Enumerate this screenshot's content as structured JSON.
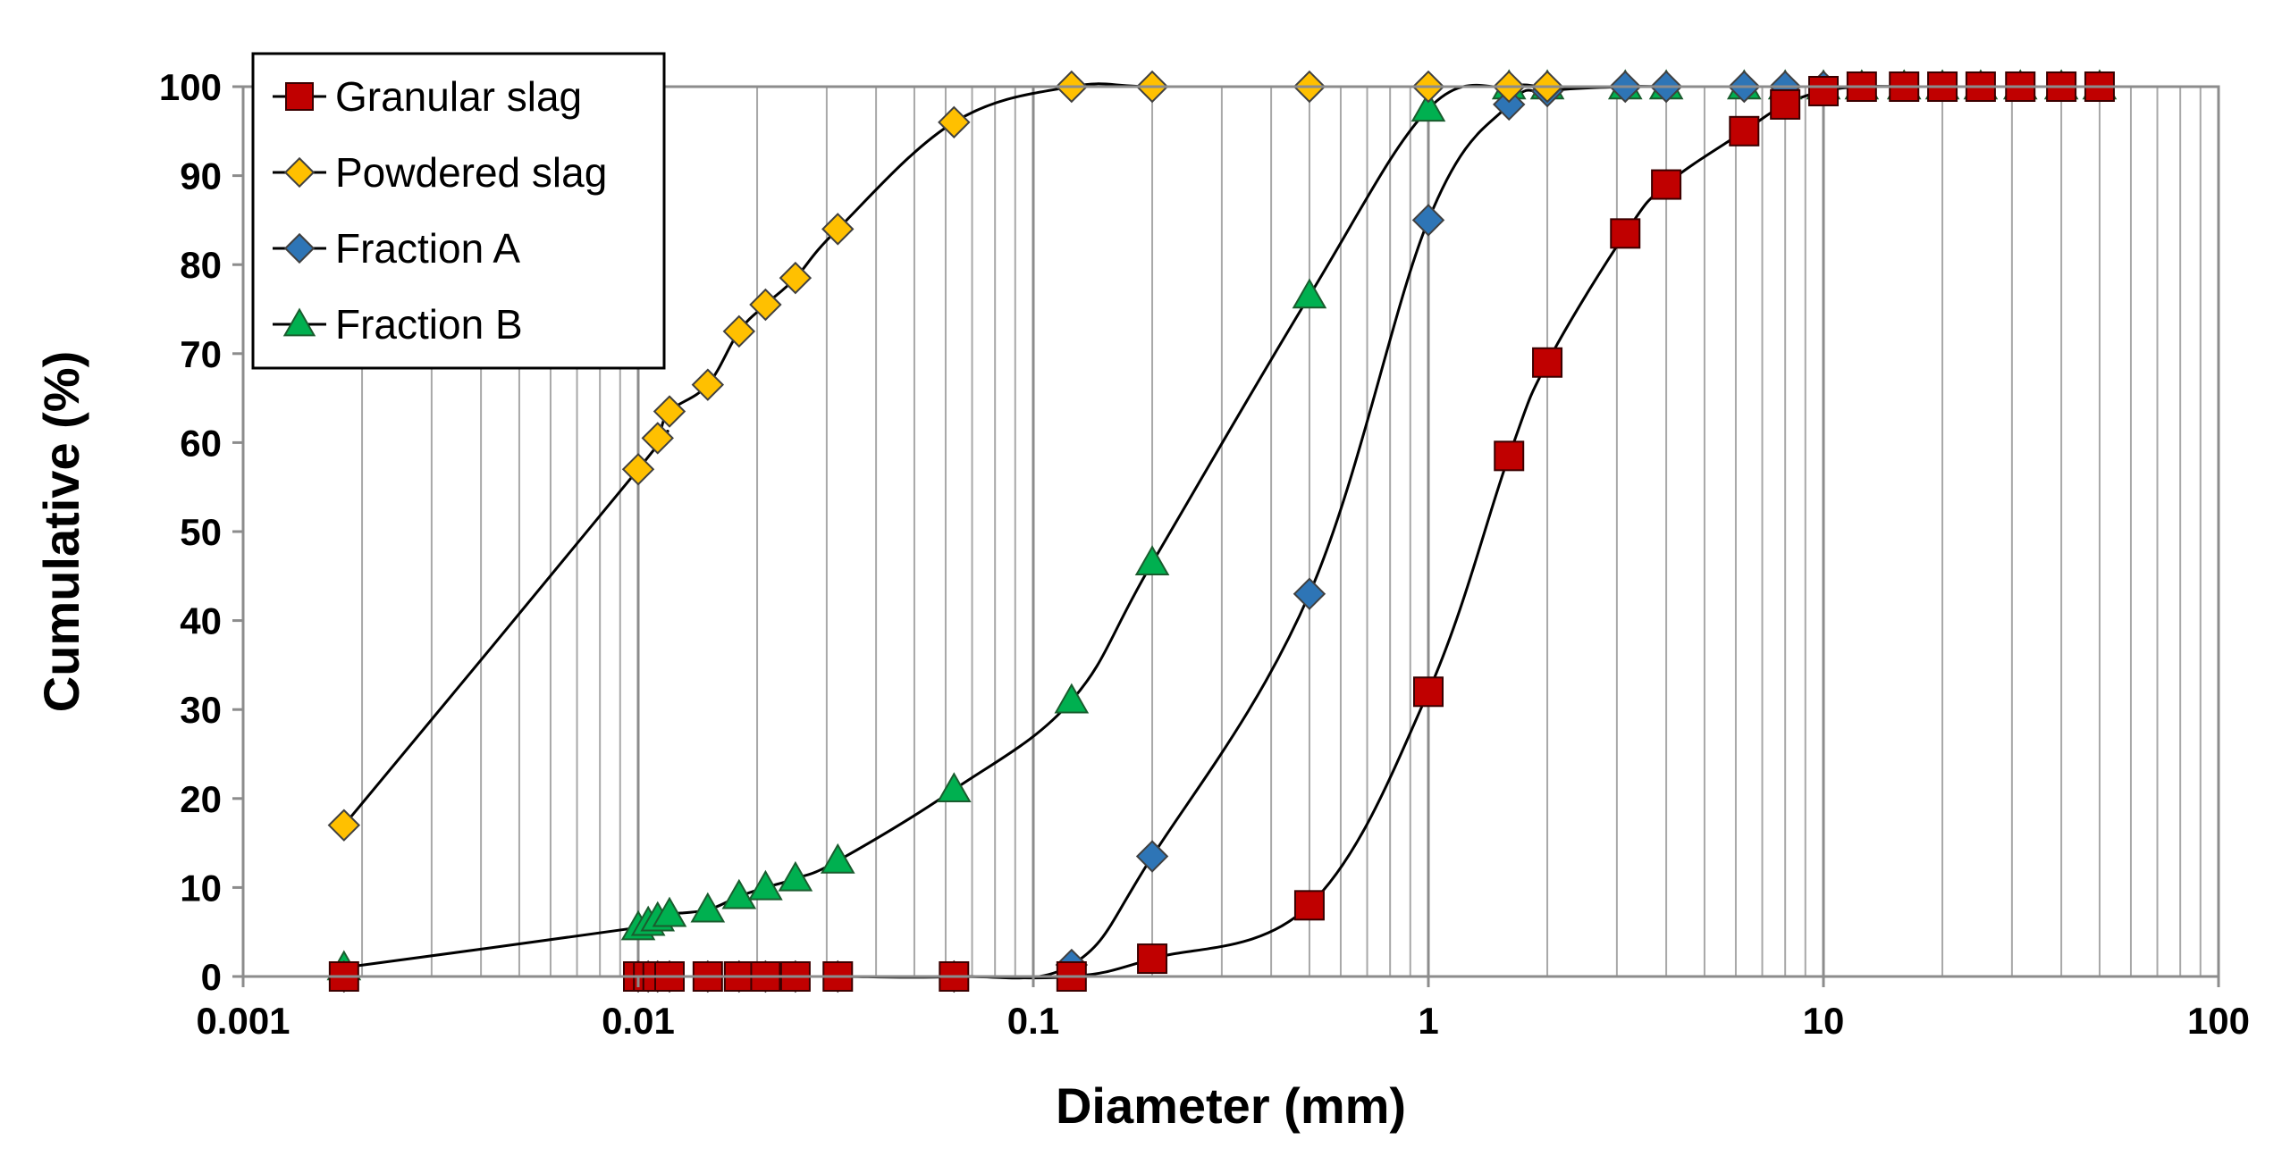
{
  "chart_data": {
    "type": "scatter",
    "title": "",
    "xlabel": "Diameter (mm)",
    "ylabel": "Cumulative (%)",
    "xscale": "log",
    "xlim": [
      0.001,
      100
    ],
    "ylim": [
      0,
      100
    ],
    "x_ticks": [
      {
        "value": 0.001,
        "label": "0.001"
      },
      {
        "value": 0.01,
        "label": "0.01"
      },
      {
        "value": 0.1,
        "label": "0.1"
      },
      {
        "value": 1,
        "label": "1"
      },
      {
        "value": 10,
        "label": "10"
      },
      {
        "value": 100,
        "label": "100"
      }
    ],
    "y_ticks": [
      {
        "value": 0,
        "label": "0"
      },
      {
        "value": 10,
        "label": "10"
      },
      {
        "value": 20,
        "label": "20"
      },
      {
        "value": 30,
        "label": "30"
      },
      {
        "value": 40,
        "label": "40"
      },
      {
        "value": 50,
        "label": "50"
      },
      {
        "value": 60,
        "label": "60"
      },
      {
        "value": 70,
        "label": "70"
      },
      {
        "value": 80,
        "label": "80"
      },
      {
        "value": 90,
        "label": "90"
      },
      {
        "value": 100,
        "label": "100"
      }
    ],
    "grid": {
      "vertical_minor": true,
      "horizontal": false
    },
    "legend_position": "top-left",
    "series": [
      {
        "name": "Granular slag",
        "marker": "square",
        "color": "#c00000",
        "x": [
          0.0018,
          0.01,
          0.0106,
          0.0112,
          0.012,
          0.015,
          0.018,
          0.021,
          0.025,
          0.032,
          0.063,
          0.125,
          0.2,
          0.5,
          1,
          1.6,
          2,
          3.15,
          4,
          6.3,
          8,
          10,
          12.5,
          16,
          20,
          25,
          31.5,
          40,
          50
        ],
        "values": [
          0,
          0,
          0,
          0,
          0,
          0,
          0,
          0,
          0,
          0,
          0,
          0,
          2,
          8,
          32,
          58.5,
          69,
          83.5,
          89,
          95,
          98,
          99.5,
          100,
          100,
          100,
          100,
          100,
          100,
          100
        ]
      },
      {
        "name": "Powdered slag",
        "marker": "diamond",
        "color": "#ffc000",
        "x": [
          0.0018,
          0.01,
          0.0112,
          0.012,
          0.015,
          0.018,
          0.021,
          0.025,
          0.032,
          0.063,
          0.125,
          0.2,
          0.5,
          1,
          1.6,
          2
        ],
        "values": [
          17,
          57,
          60.5,
          63.5,
          66.5,
          72.5,
          75.5,
          78.5,
          84,
          96,
          100,
          100,
          100,
          100,
          100,
          100
        ]
      },
      {
        "name": "Fraction A",
        "marker": "diamond",
        "color": "#2e75b6",
        "x": [
          0.0018,
          0.01,
          0.0106,
          0.0112,
          0.012,
          0.015,
          0.018,
          0.021,
          0.025,
          0.032,
          0.063,
          0.125,
          0.2,
          0.5,
          1,
          1.6,
          2,
          3.15,
          4,
          6.3,
          8,
          10
        ],
        "values": [
          0,
          0,
          0,
          0,
          0,
          0,
          0,
          0,
          0,
          0,
          0,
          1.3,
          13.5,
          43,
          85,
          98,
          99.5,
          100,
          100,
          100,
          100,
          100
        ]
      },
      {
        "name": "Fraction B",
        "marker": "triangle",
        "color": "#00b050",
        "x": [
          0.0018,
          0.01,
          0.0106,
          0.0112,
          0.012,
          0.015,
          0.018,
          0.021,
          0.025,
          0.032,
          0.063,
          0.125,
          0.2,
          0.5,
          1,
          1.6,
          2,
          3.15,
          4,
          6.3,
          8,
          10,
          12.5,
          16,
          20,
          25,
          31.5,
          40,
          50
        ],
        "values": [
          1,
          5.5,
          6,
          6.5,
          7,
          7.5,
          9,
          10,
          11,
          13,
          21,
          31,
          46.5,
          76.5,
          97.5,
          100,
          100,
          100,
          100,
          100,
          100,
          100,
          100,
          100,
          100,
          100,
          100,
          100,
          100
        ]
      }
    ]
  }
}
